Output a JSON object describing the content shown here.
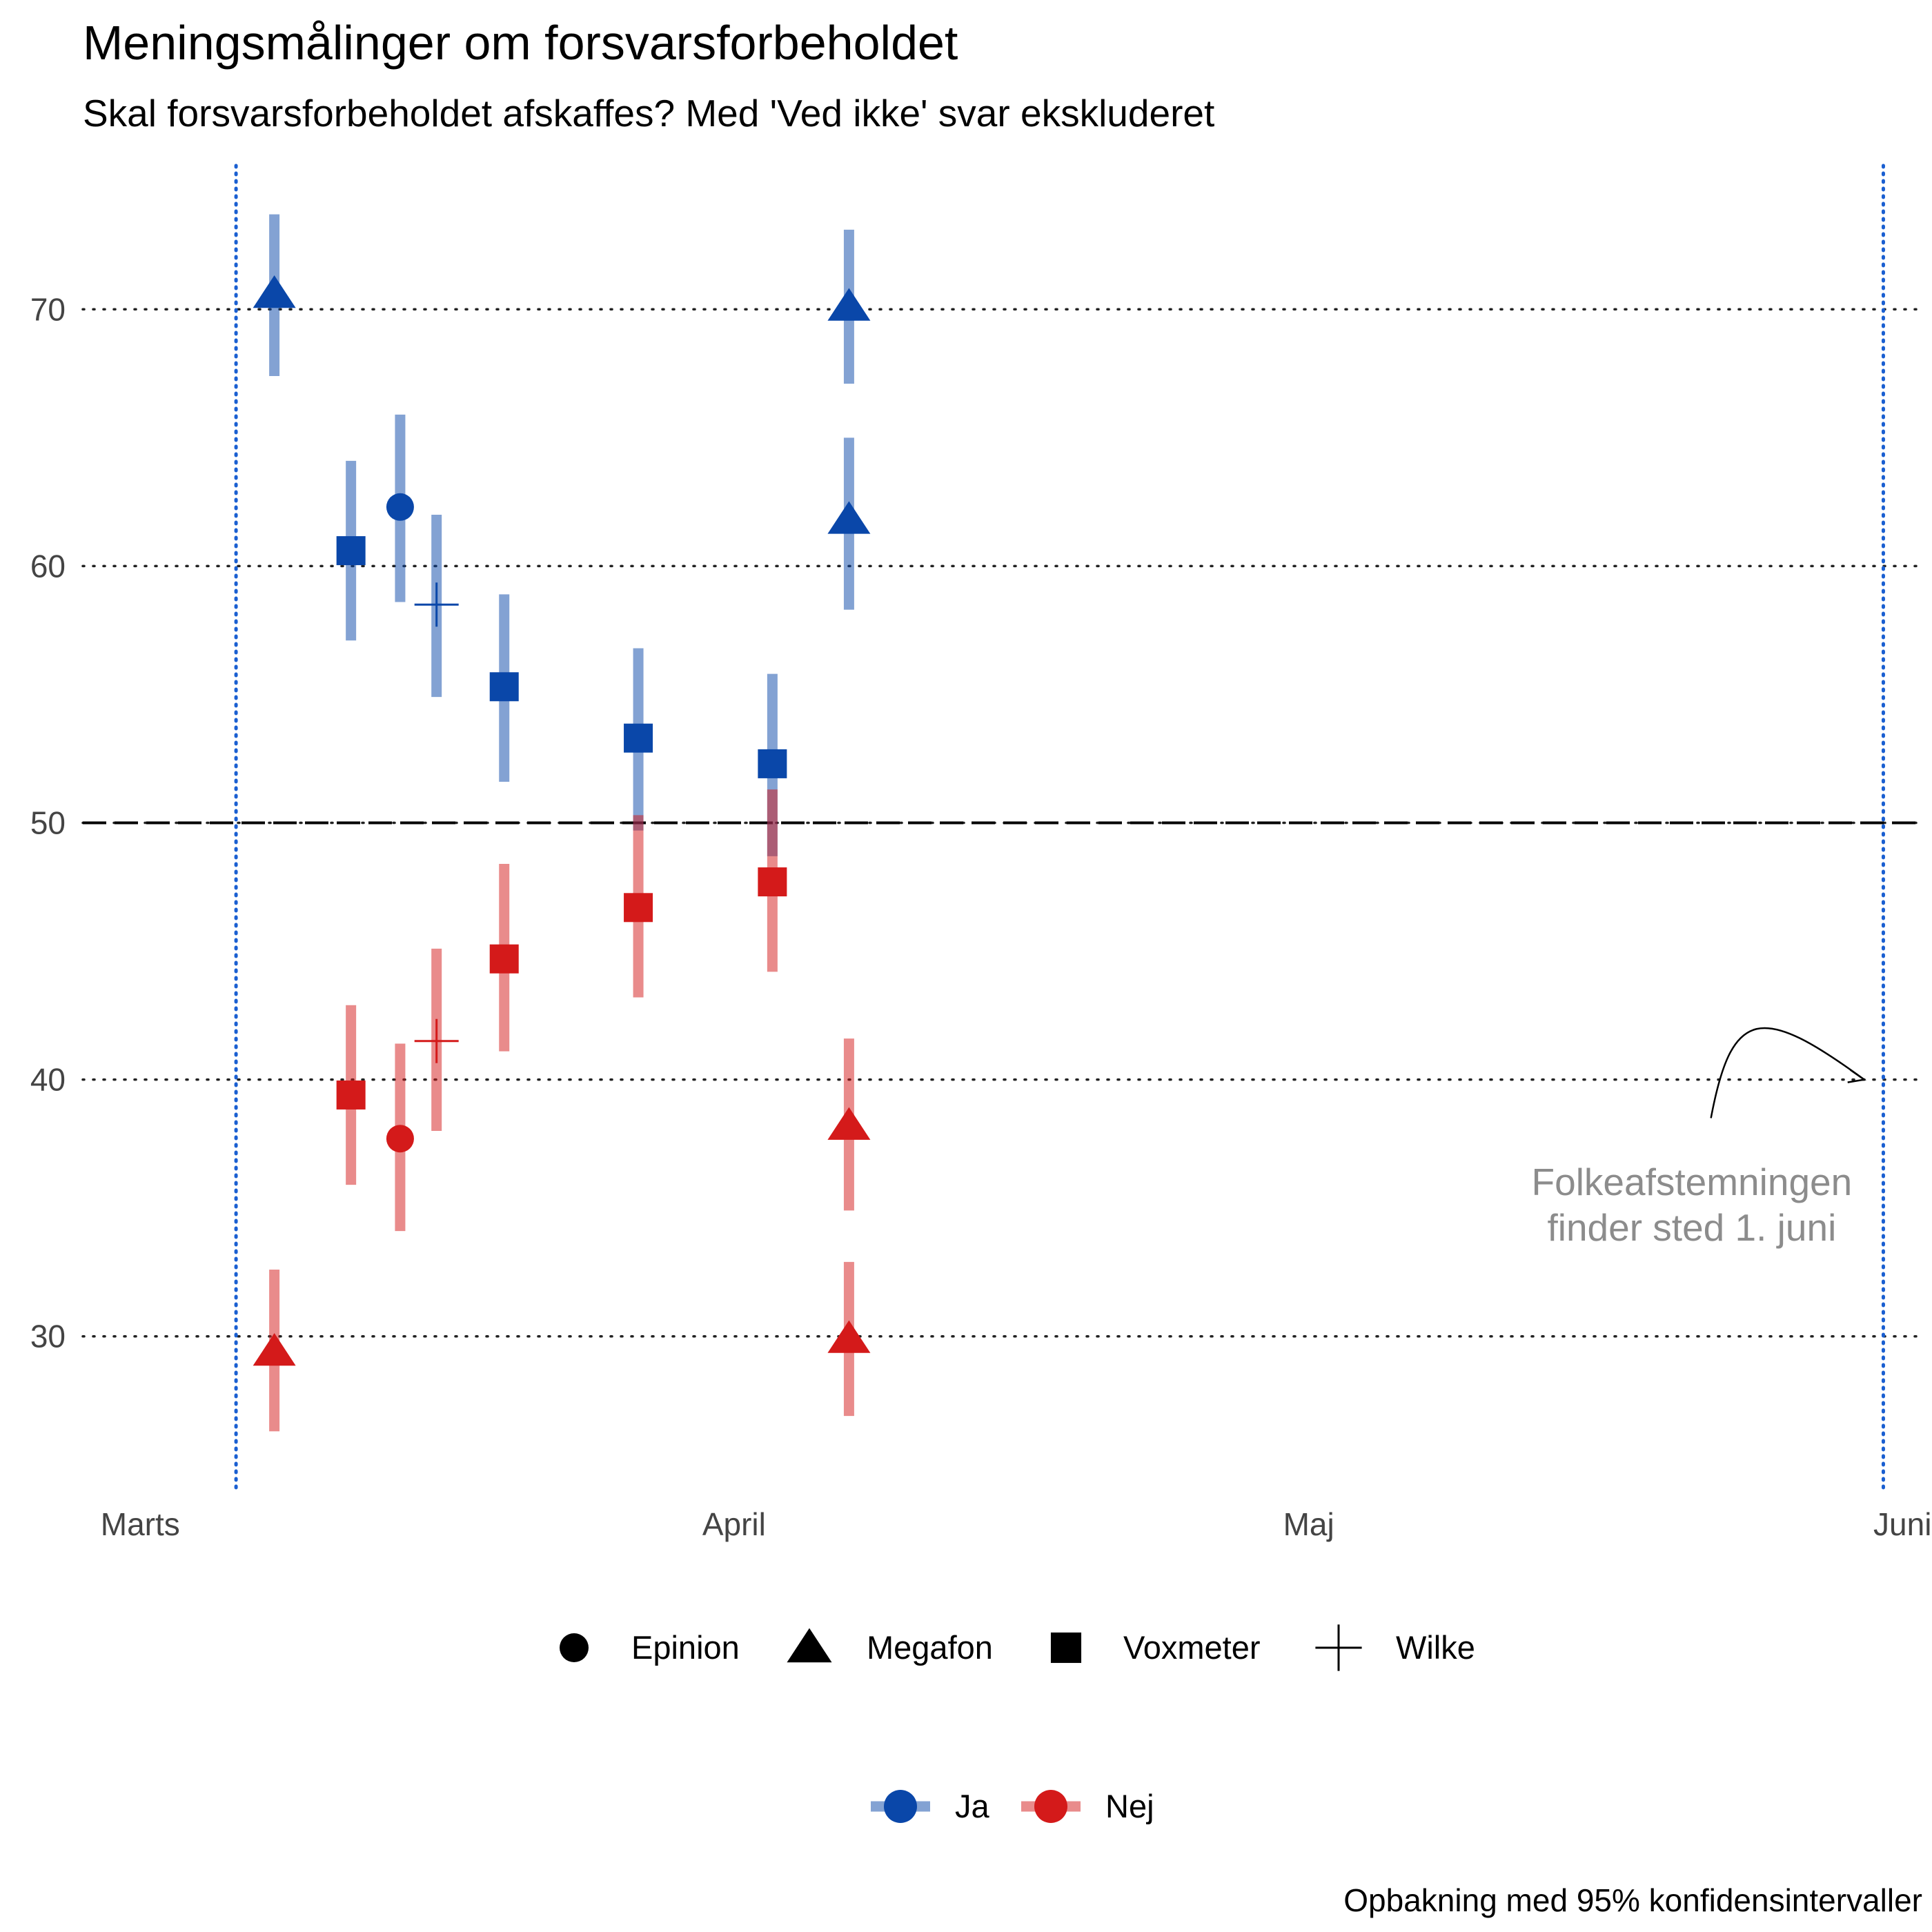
{
  "chart_data": {
    "type": "scatter",
    "title": "Meningsmålinger om forsvarsforbeholdet",
    "subtitle": "Skal forsvarsforbeholdet afskaffes? Med 'Ved ikke' svar ekskluderet",
    "caption": "Opbakning med 95% konfidensintervaller",
    "x_axis": {
      "type": "date",
      "range": [
        "2022-02-26",
        "2022-06-02"
      ],
      "ticks": [
        "2022-03-01",
        "2022-04-01",
        "2022-05-01",
        "2022-06-01"
      ],
      "tick_labels": [
        "Marts",
        "April",
        "Maj",
        "Juni"
      ]
    },
    "y_axis": {
      "range": [
        24,
        76
      ],
      "ticks": [
        30,
        40,
        50,
        60,
        70
      ],
      "tick_labels": [
        "30",
        "40",
        "50",
        "60",
        "70"
      ]
    },
    "grid": "horizontal dotted",
    "reference_line": {
      "y": 50,
      "style": "dashed"
    },
    "event_lines": {
      "dates": [
        "2022-03-06",
        "2022-05-31"
      ],
      "color": "#1a5fd1"
    },
    "annotation": {
      "lines": [
        "Folkeafstemningen",
        "finder sted 1. juni"
      ],
      "x": "2022-05-21",
      "y": 35.5,
      "arrow_from": {
        "x": "2022-05-22",
        "y": 38.5
      },
      "arrow_to": {
        "x": "2022-05-30",
        "y": 40
      },
      "color": "#8c8c8c"
    },
    "colors": {
      "Ja": "#0a47a9",
      "Nej": "#d41a1a"
    },
    "shape_legend": [
      {
        "label": "Epinion",
        "shape": "circle"
      },
      {
        "label": "Megafon",
        "shape": "triangle"
      },
      {
        "label": "Voxmeter",
        "shape": "square"
      },
      {
        "label": "Wilke",
        "shape": "plus"
      }
    ],
    "color_legend": [
      {
        "label": "Ja",
        "color": "#0a47a9"
      },
      {
        "label": "Nej",
        "color": "#d41a1a"
      }
    ],
    "series": [
      {
        "name": "Ja",
        "points": [
          {
            "date": "2022-03-08",
            "pollster": "Megafon",
            "y": 70.6,
            "lo": 67.4,
            "hi": 73.7
          },
          {
            "date": "2022-03-12",
            "pollster": "Voxmeter",
            "y": 60.6,
            "lo": 57.1,
            "hi": 64.1
          },
          {
            "date": "2022-03-15",
            "pollster": "Epinion",
            "y": 62.3,
            "lo": 58.6,
            "hi": 65.9
          },
          {
            "date": "2022-03-16",
            "pollster": "Wilke",
            "y": 58.5,
            "lo": 54.9,
            "hi": 62.0
          },
          {
            "date": "2022-03-20",
            "pollster": "Voxmeter",
            "y": 55.3,
            "lo": 51.6,
            "hi": 58.9
          },
          {
            "date": "2022-03-27",
            "pollster": "Voxmeter",
            "y": 53.3,
            "lo": 49.7,
            "hi": 56.8
          },
          {
            "date": "2022-04-03",
            "pollster": "Voxmeter",
            "y": 52.3,
            "lo": 48.7,
            "hi": 55.8
          },
          {
            "date": "2022-04-07",
            "pollster": "Megafon",
            "y": 70.1,
            "lo": 67.1,
            "hi": 73.1
          },
          {
            "date": "2022-04-07",
            "pollster": "Megafon",
            "y": 61.8,
            "lo": 58.3,
            "hi": 65.0
          }
        ]
      },
      {
        "name": "Nej",
        "points": [
          {
            "date": "2022-03-08",
            "pollster": "Megafon",
            "y": 29.4,
            "lo": 26.3,
            "hi": 32.6
          },
          {
            "date": "2022-03-12",
            "pollster": "Voxmeter",
            "y": 39.4,
            "lo": 35.9,
            "hi": 42.9
          },
          {
            "date": "2022-03-15",
            "pollster": "Epinion",
            "y": 37.7,
            "lo": 34.1,
            "hi": 41.4
          },
          {
            "date": "2022-03-16",
            "pollster": "Wilke",
            "y": 41.5,
            "lo": 38.0,
            "hi": 45.1
          },
          {
            "date": "2022-03-20",
            "pollster": "Voxmeter",
            "y": 44.7,
            "lo": 41.1,
            "hi": 48.4
          },
          {
            "date": "2022-03-27",
            "pollster": "Voxmeter",
            "y": 46.7,
            "lo": 43.2,
            "hi": 50.3
          },
          {
            "date": "2022-04-03",
            "pollster": "Voxmeter",
            "y": 47.7,
            "lo": 44.2,
            "hi": 51.3
          },
          {
            "date": "2022-04-07",
            "pollster": "Megafon",
            "y": 29.9,
            "lo": 26.9,
            "hi": 32.9
          },
          {
            "date": "2022-04-07",
            "pollster": "Megafon",
            "y": 38.2,
            "lo": 34.9,
            "hi": 41.6
          }
        ]
      }
    ]
  }
}
